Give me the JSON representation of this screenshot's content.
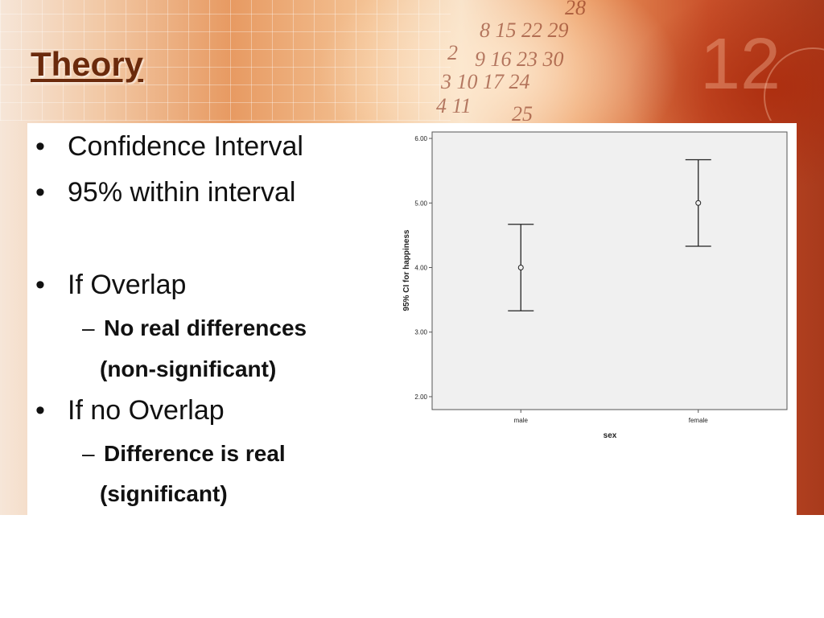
{
  "slide": {
    "title": "Theory",
    "bullets": [
      {
        "level": 1,
        "text": "Confidence Interval"
      },
      {
        "level": 1,
        "text": "95% within interval"
      },
      {
        "level": 1,
        "text": "If Overlap"
      },
      {
        "level": 2,
        "text": "No real differences",
        "continuation": "(non-significant)"
      },
      {
        "level": 1,
        "text": "If no Overlap"
      },
      {
        "level": 2,
        "text": "Difference is real",
        "continuation": "(significant)"
      }
    ],
    "bullet_glyph": "•",
    "dash_glyph": "–",
    "decorative_numbers": [
      "28",
      "8 15 22 29",
      "2",
      "9 16 23 30",
      "3 10 17 24",
      "4 11",
      "25",
      "12"
    ],
    "colors": {
      "title": "#6b2a0c",
      "text": "#111111",
      "plot_background": "#f0f0f0"
    }
  },
  "chart_data": {
    "type": "errorbar",
    "xlabel": "sex",
    "ylabel": "95% CI for happiness",
    "categories": [
      "male",
      "female"
    ],
    "means": [
      4.0,
      5.0
    ],
    "lower": [
      3.33,
      4.33
    ],
    "upper": [
      4.67,
      5.67
    ],
    "ylim": [
      1.8,
      6.1
    ],
    "yticks": [
      2.0,
      3.0,
      4.0,
      5.0,
      6.0
    ],
    "ytick_labels": [
      "2.00",
      "3.00",
      "4.00",
      "5.00",
      "6.00"
    ],
    "grid": false,
    "legend": "none"
  }
}
